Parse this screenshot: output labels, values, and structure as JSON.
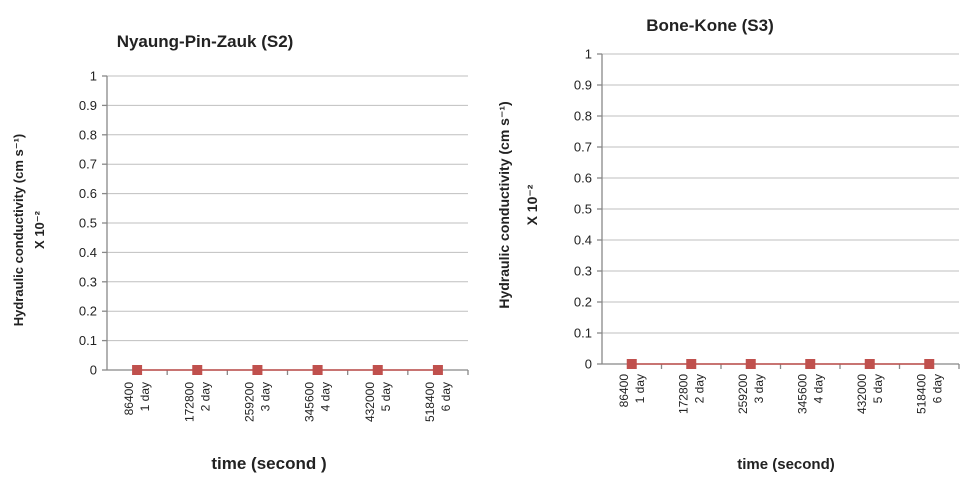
{
  "chart_data": [
    {
      "type": "line",
      "title": "Nyaung-Pin-Zauk (S2)",
      "ylabel_line1": "Hydraulic conductivity (cm s⁻¹)",
      "ylabel_line2": "X 10⁻²",
      "xlabel": "time (second )",
      "ylim": [
        0,
        1
      ],
      "yticks": [
        "0",
        "0.1",
        "0.2",
        "0.3",
        "0.4",
        "0.5",
        "0.6",
        "0.7",
        "0.8",
        "0.9",
        "1"
      ],
      "categories": [
        {
          "seconds": "86400",
          "day": "1 day"
        },
        {
          "seconds": "172800",
          "day": "2 day"
        },
        {
          "seconds": "259200",
          "day": "3 day"
        },
        {
          "seconds": "345600",
          "day": "4 day"
        },
        {
          "seconds": "432000",
          "day": "5 day"
        },
        {
          "seconds": "518400",
          "day": "6 day"
        }
      ],
      "series": [
        {
          "values": [
            0,
            0,
            0,
            0,
            0,
            0
          ],
          "color": "#c0504d"
        }
      ],
      "grid": true,
      "legend": "none"
    },
    {
      "type": "line",
      "title": "Bone-Kone (S3)",
      "ylabel_line1": "Hydraulic conductivity (cm s⁻¹)",
      "ylabel_line2": "X 10⁻²",
      "xlabel": "time (second)",
      "ylim": [
        0,
        1
      ],
      "yticks": [
        "0",
        "0.1",
        "0.2",
        "0.3",
        "0.4",
        "0.5",
        "0.6",
        "0.7",
        "0.8",
        "0.9",
        "1"
      ],
      "categories": [
        {
          "seconds": "86400",
          "day": "1 day"
        },
        {
          "seconds": "172800",
          "day": "2 day"
        },
        {
          "seconds": "259200",
          "day": "3 day"
        },
        {
          "seconds": "345600",
          "day": "4 day"
        },
        {
          "seconds": "432000",
          "day": "5 day"
        },
        {
          "seconds": "518400",
          "day": "6 day"
        }
      ],
      "series": [
        {
          "values": [
            0,
            0,
            0,
            0,
            0,
            0
          ],
          "color": "#c0504d"
        }
      ],
      "grid": true,
      "legend": "none"
    }
  ]
}
